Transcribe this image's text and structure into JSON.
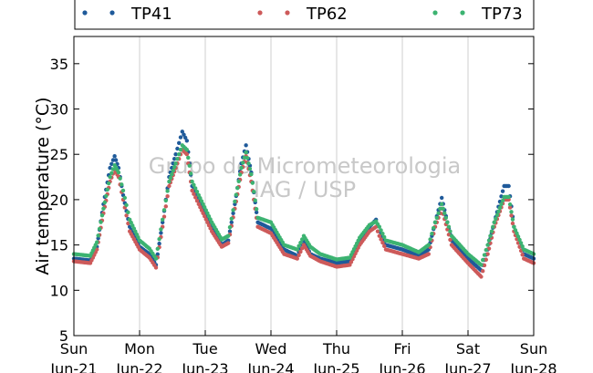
{
  "chart_data": {
    "type": "scatter",
    "title": "",
    "xlabel": "",
    "ylabel": "Air temperature (°C)",
    "ylim": [
      5,
      38
    ],
    "yticks": [
      5,
      10,
      15,
      20,
      25,
      30,
      35
    ],
    "xlim": [
      0,
      7
    ],
    "x_unit": "days since Sun Jun-21 00:00",
    "xtick_labels": [
      {
        "day": "Sun",
        "date": "Jun-21"
      },
      {
        "day": "Mon",
        "date": "Jun-22"
      },
      {
        "day": "Tue",
        "date": "Jun-23"
      },
      {
        "day": "Wed",
        "date": "Jun-24"
      },
      {
        "day": "Thu",
        "date": "Jun-25"
      },
      {
        "day": "Fri",
        "date": "Jun-26"
      },
      {
        "day": "Sat",
        "date": "Jun-27"
      },
      {
        "day": "Sun",
        "date": "Jun-28"
      }
    ],
    "grid": "vertical",
    "legend_position": "top",
    "watermark": [
      "Grupo de Micrometeorologia",
      "IAG / USP"
    ],
    "series": [
      {
        "name": "TP41",
        "color": "#1f5a9a",
        "x": [
          0.0,
          0.25,
          0.35,
          0.45,
          0.55,
          0.62,
          0.68,
          0.75,
          0.85,
          1.0,
          1.15,
          1.25,
          1.35,
          1.45,
          1.55,
          1.65,
          1.72,
          1.8,
          1.9,
          2.1,
          2.25,
          2.35,
          2.45,
          2.55,
          2.62,
          2.7,
          2.8,
          3.0,
          3.2,
          3.4,
          3.5,
          3.6,
          3.75,
          4.0,
          4.2,
          4.35,
          4.5,
          4.6,
          4.65,
          4.75,
          5.0,
          5.25,
          5.4,
          5.5,
          5.6,
          5.75,
          6.0,
          6.2,
          6.3,
          6.4,
          6.55,
          6.62,
          6.7,
          6.85,
          7.0
        ],
        "y": [
          13.5,
          13.3,
          14.8,
          19.5,
          23.5,
          24.8,
          23.5,
          20.5,
          17.0,
          14.8,
          14.0,
          12.8,
          17.5,
          22.5,
          25.0,
          27.5,
          26.5,
          21.5,
          20.0,
          17.0,
          15.0,
          15.5,
          19.5,
          24.0,
          26.0,
          23.0,
          17.5,
          16.8,
          14.5,
          13.8,
          15.5,
          14.0,
          13.5,
          13.0,
          13.2,
          15.5,
          17.0,
          17.8,
          16.5,
          15.0,
          14.5,
          13.8,
          14.5,
          17.5,
          20.2,
          15.5,
          13.5,
          12.2,
          14.5,
          17.5,
          21.5,
          21.5,
          17.0,
          14.0,
          13.5
        ]
      },
      {
        "name": "TP62",
        "color": "#cd5a5a",
        "x": [
          0.0,
          0.25,
          0.35,
          0.45,
          0.55,
          0.62,
          0.68,
          0.75,
          0.85,
          1.0,
          1.15,
          1.25,
          1.35,
          1.45,
          1.55,
          1.65,
          1.72,
          1.8,
          1.9,
          2.1,
          2.25,
          2.35,
          2.45,
          2.55,
          2.62,
          2.7,
          2.8,
          3.0,
          3.2,
          3.4,
          3.5,
          3.6,
          3.75,
          4.0,
          4.2,
          4.35,
          4.5,
          4.6,
          4.65,
          4.75,
          5.0,
          5.25,
          5.4,
          5.5,
          5.6,
          5.75,
          6.0,
          6.2,
          6.3,
          6.4,
          6.55,
          6.62,
          6.7,
          6.85,
          7.0
        ],
        "y": [
          13.2,
          13.0,
          14.5,
          18.5,
          22.0,
          23.3,
          22.5,
          20.0,
          16.5,
          14.5,
          13.6,
          12.5,
          17.0,
          21.5,
          23.5,
          25.5,
          25.0,
          21.0,
          19.5,
          16.5,
          14.8,
          15.2,
          19.0,
          23.0,
          24.8,
          22.0,
          17.0,
          16.3,
          14.0,
          13.5,
          15.0,
          13.8,
          13.2,
          12.6,
          12.8,
          15.0,
          16.5,
          17.0,
          16.0,
          14.5,
          14.0,
          13.5,
          14.0,
          17.0,
          19.0,
          15.0,
          13.0,
          11.5,
          14.0,
          17.0,
          20.0,
          20.0,
          16.5,
          13.5,
          13.0
        ]
      },
      {
        "name": "TP73",
        "color": "#3cb371",
        "x": [
          0.0,
          0.25,
          0.35,
          0.45,
          0.55,
          0.62,
          0.68,
          0.75,
          0.85,
          1.0,
          1.15,
          1.25,
          1.35,
          1.45,
          1.55,
          1.65,
          1.72,
          1.8,
          1.9,
          2.1,
          2.25,
          2.35,
          2.45,
          2.55,
          2.62,
          2.7,
          2.8,
          3.0,
          3.2,
          3.4,
          3.5,
          3.6,
          3.75,
          4.0,
          4.2,
          4.35,
          4.5,
          4.6,
          4.65,
          4.75,
          5.0,
          5.25,
          5.4,
          5.5,
          5.6,
          5.75,
          6.0,
          6.2,
          6.3,
          6.4,
          6.55,
          6.62,
          6.7,
          6.85,
          7.0
        ],
        "y": [
          14.0,
          13.8,
          15.3,
          19.0,
          22.5,
          23.8,
          23.0,
          21.0,
          17.8,
          15.5,
          14.6,
          13.5,
          17.8,
          22.0,
          24.0,
          26.0,
          25.5,
          22.0,
          20.5,
          17.5,
          15.6,
          16.0,
          19.8,
          23.5,
          25.2,
          22.8,
          18.0,
          17.5,
          15.0,
          14.5,
          16.0,
          14.8,
          14.0,
          13.4,
          13.6,
          15.8,
          17.2,
          17.6,
          17.0,
          15.5,
          15.0,
          14.2,
          15.0,
          17.5,
          19.5,
          16.0,
          14.0,
          12.8,
          15.0,
          17.5,
          20.3,
          20.3,
          17.0,
          14.5,
          14.0
        ]
      }
    ]
  }
}
